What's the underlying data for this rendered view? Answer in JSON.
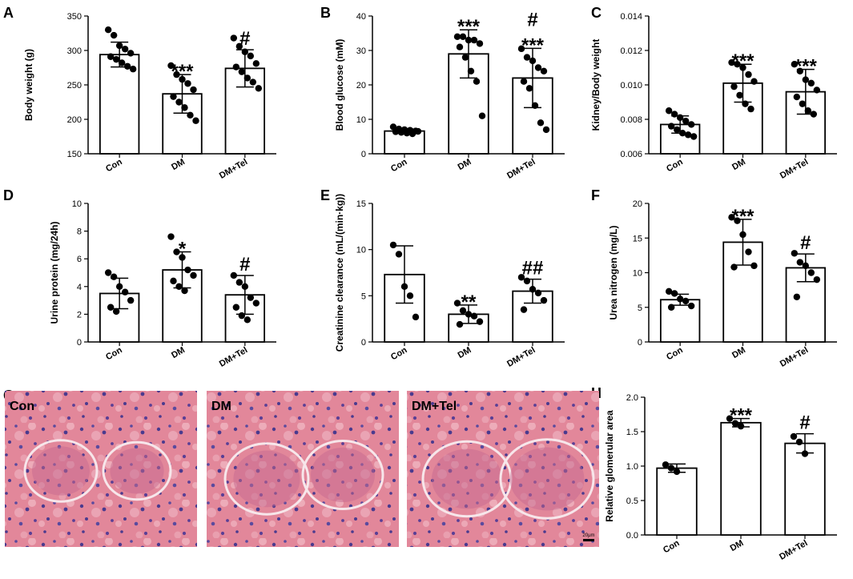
{
  "chart_data": [
    {
      "panel": "A",
      "type": "bar",
      "ylabel": "Body weight (g)",
      "ylim": [
        150,
        350
      ],
      "yticks": [
        150,
        200,
        250,
        300,
        350
      ],
      "categories": [
        "Con",
        "DM",
        "DM+Tel"
      ],
      "values": [
        294,
        237,
        274
      ],
      "error_sd": [
        18,
        28,
        27
      ],
      "significance": [
        [],
        [
          "***"
        ],
        [
          "#"
        ]
      ],
      "points": [
        [
          330,
          322,
          307,
          302,
          296,
          291,
          287,
          282,
          277,
          273
        ],
        [
          278,
          265,
          258,
          252,
          243,
          233,
          225,
          217,
          206,
          198
        ],
        [
          318,
          306,
          298,
          292,
          281,
          276,
          269,
          260,
          254,
          245
        ]
      ]
    },
    {
      "panel": "B",
      "type": "bar",
      "ylabel": "Blood glucose (mM)",
      "ylim": [
        0,
        40
      ],
      "yticks": [
        0,
        10,
        20,
        30,
        40
      ],
      "categories": [
        "Con",
        "DM",
        "DM+Tel"
      ],
      "values": [
        6.6,
        29,
        22
      ],
      "error_sd": [
        0.6,
        7,
        8.6
      ],
      "significance": [
        [],
        [
          "***"
        ],
        [
          "#",
          "***"
        ]
      ],
      "points": [
        [
          7.8,
          7.2,
          7.0,
          6.8,
          6.6,
          6.4,
          6.2,
          6.0,
          5.8,
          6.5
        ],
        [
          34,
          34,
          33,
          33,
          32,
          31,
          28,
          24,
          21,
          11
        ],
        [
          30.5,
          28,
          27,
          25,
          24,
          21,
          19,
          14,
          9,
          7
        ]
      ]
    },
    {
      "panel": "C",
      "type": "bar",
      "ylabel": "Kidney/Body weight",
      "ylim": [
        0.006,
        0.014
      ],
      "yticks": [
        0.006,
        0.008,
        0.01,
        0.012,
        0.014
      ],
      "categories": [
        "Con",
        "DM",
        "DM+Tel"
      ],
      "values": [
        0.0077,
        0.0101,
        0.0096
      ],
      "error_sd": [
        0.0005,
        0.0011,
        0.0013
      ],
      "significance": [
        [],
        [
          "***"
        ],
        [
          "***"
        ]
      ],
      "points": [
        [
          0.0085,
          0.0083,
          0.0081,
          0.0079,
          0.0077,
          0.0076,
          0.0074,
          0.0072,
          0.0071,
          0.007
        ],
        [
          0.0113,
          0.0112,
          0.011,
          0.0106,
          0.0102,
          0.0099,
          0.0094,
          0.0089,
          0.0086
        ],
        [
          0.0112,
          0.0108,
          0.0103,
          0.0101,
          0.0097,
          0.0093,
          0.0089,
          0.0085,
          0.0083
        ]
      ]
    },
    {
      "panel": "D",
      "type": "bar",
      "ylabel": "Urine protein (mg/24h)",
      "ylim": [
        0,
        10
      ],
      "yticks": [
        0,
        2,
        4,
        6,
        8,
        10
      ],
      "categories": [
        "Con",
        "DM",
        "DM+Tel"
      ],
      "values": [
        3.5,
        5.2,
        3.4
      ],
      "error_sd": [
        1.1,
        1.3,
        1.4
      ],
      "significance": [
        [],
        [
          "*"
        ],
        [
          "#"
        ]
      ],
      "points": [
        [
          5.0,
          4.7,
          4.0,
          3.6,
          3.0,
          2.5,
          2.2
        ],
        [
          7.6,
          6.5,
          6.1,
          5.2,
          4.8,
          4.4,
          4.0,
          3.7
        ],
        [
          4.8,
          4.3,
          4.0,
          3.2,
          2.8,
          2.5,
          1.9,
          1.6
        ]
      ]
    },
    {
      "panel": "E",
      "type": "bar",
      "ylabel": "Creatinine clearance (mL/(min·kg))",
      "ylim": [
        0,
        15
      ],
      "yticks": [
        0,
        5,
        10,
        15
      ],
      "categories": [
        "Con",
        "DM",
        "DM+Tel"
      ],
      "values": [
        7.3,
        3.0,
        5.5
      ],
      "error_sd": [
        3.1,
        1.0,
        1.3
      ],
      "significance": [
        [],
        [
          "**"
        ],
        [
          "##"
        ]
      ],
      "points": [
        [
          10.5,
          9.5,
          6.0,
          5.0,
          2.7
        ],
        [
          4.2,
          3.4,
          3.0,
          2.8,
          2.2,
          1.9
        ],
        [
          7.0,
          6.6,
          5.7,
          5.3,
          4.5,
          3.5
        ]
      ]
    },
    {
      "panel": "F",
      "type": "bar",
      "ylabel": "Urea nitrogen (mg/L)",
      "ylim": [
        0,
        20
      ],
      "yticks": [
        0,
        5,
        10,
        15,
        20
      ],
      "categories": [
        "Con",
        "DM",
        "DM+Tel"
      ],
      "values": [
        6.1,
        14.4,
        10.7
      ],
      "error_sd": [
        0.8,
        3.3,
        2.0
      ],
      "significance": [
        [],
        [
          "***"
        ],
        [
          "#"
        ]
      ],
      "points": [
        [
          7.3,
          7.0,
          6.2,
          5.9,
          5.2,
          5.0
        ],
        [
          18.0,
          17.5,
          15.5,
          13.0,
          11.0,
          10.8
        ],
        [
          12.8,
          11.5,
          11.0,
          10.0,
          9.0,
          6.5
        ]
      ]
    },
    {
      "panel": "H",
      "type": "bar",
      "ylabel": "Relative glomerular area",
      "ylim": [
        0,
        2.0
      ],
      "yticks": [
        0.0,
        0.5,
        1.0,
        1.5,
        2.0
      ],
      "categories": [
        "Con",
        "DM",
        "DM+Tel"
      ],
      "values": [
        0.97,
        1.63,
        1.33
      ],
      "error_sd": [
        0.06,
        0.06,
        0.14
      ],
      "significance": [
        [],
        [
          "***"
        ],
        [
          "#"
        ]
      ],
      "points": [
        [
          1.02,
          0.97,
          0.92
        ],
        [
          1.69,
          1.62,
          1.58
        ],
        [
          1.43,
          1.35,
          1.18
        ]
      ]
    }
  ],
  "micrographs": {
    "panel": "G",
    "images": [
      {
        "label": "Con"
      },
      {
        "label": "DM"
      },
      {
        "label": "DM+Tel",
        "scale_bar": "20μm"
      }
    ]
  }
}
